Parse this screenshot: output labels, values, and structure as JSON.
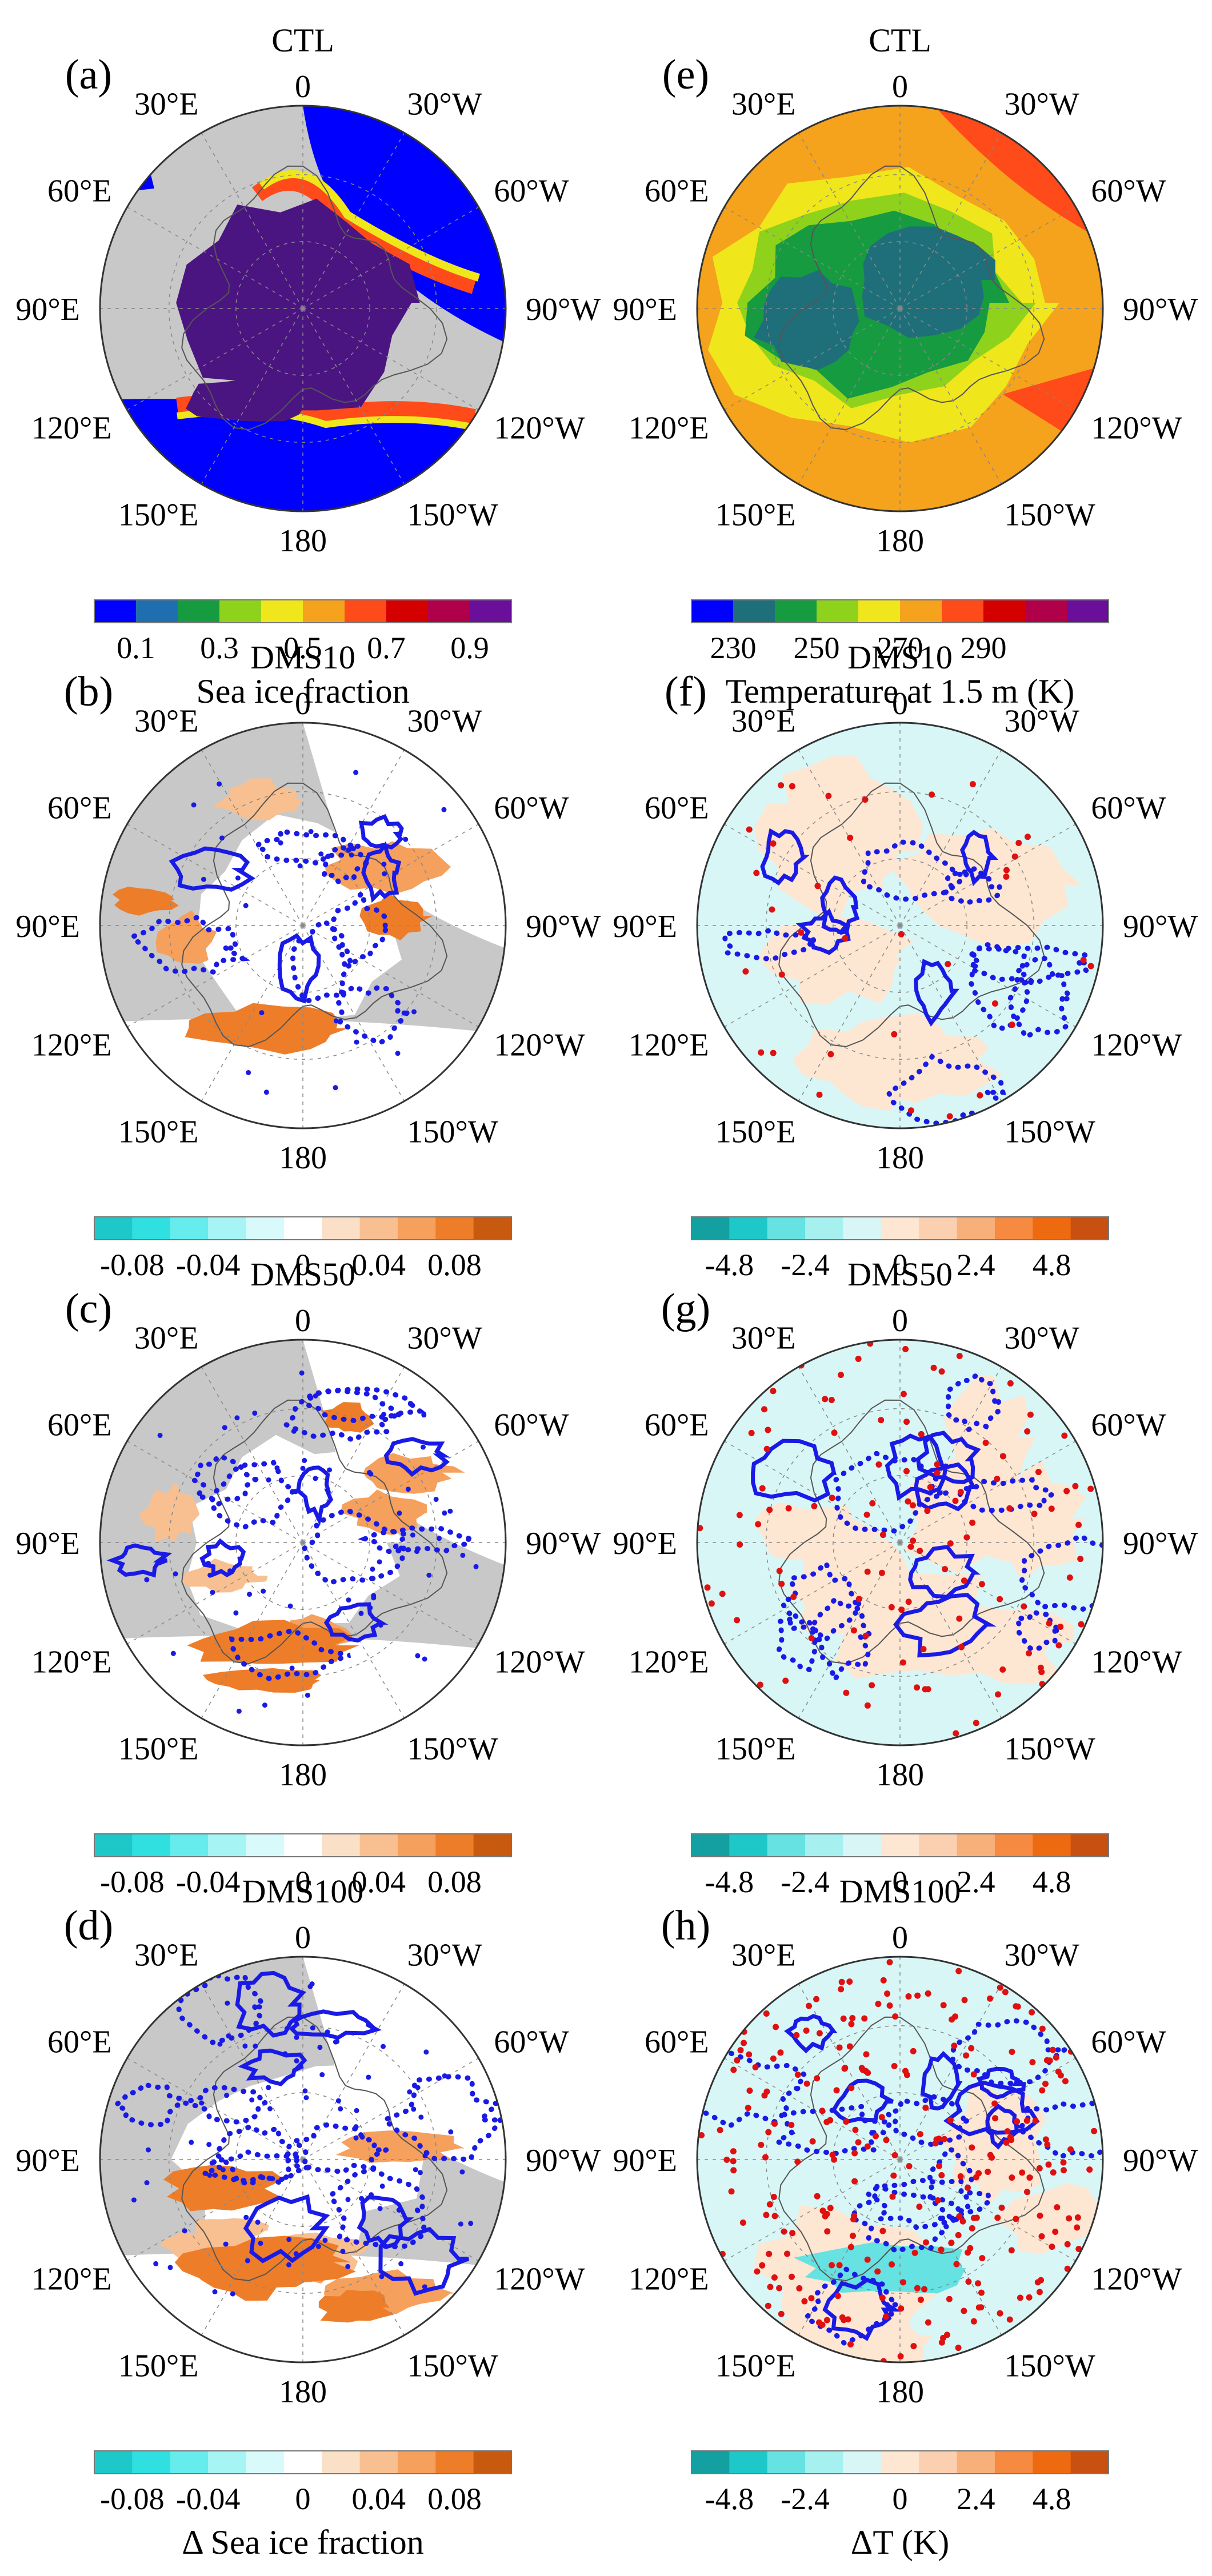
{
  "figure": {
    "colorbar_labels": {
      "sea_ice_fraction": "Sea ice fraction",
      "temperature": "Temperature at 1.5 m (K)",
      "delta_sea_ice": "Δ Sea ice fraction",
      "delta_t": "ΔT (K)"
    },
    "longitude_labels": [
      "0",
      "30°W",
      "60°W",
      "90°W",
      "120°W",
      "150°W",
      "180",
      "150°E",
      "120°E",
      "90°E",
      "60°E",
      "30°E"
    ]
  },
  "chart_data": [
    {
      "type": "heatmap",
      "panel": "(a)",
      "title": "CTL",
      "projection": "north polar stereographic",
      "variable": "Sea ice fraction",
      "colorbar": {
        "ticks": [
          "0.1",
          "0.3",
          "0.5",
          "0.7",
          "0.9"
        ],
        "colors": [
          "#0000ff",
          "#1f6fb0",
          "#169b40",
          "#8fd21c",
          "#f0e61c",
          "#f5a21c",
          "#ff4a1a",
          "#d40000",
          "#b0004a",
          "#6a0f9a"
        ]
      },
      "legend": "colorbar below panel"
    },
    {
      "type": "heatmap",
      "panel": "(e)",
      "title": "CTL",
      "projection": "north polar stereographic",
      "variable": "Temperature at 1.5 m (K)",
      "colorbar": {
        "ticks": [
          "230",
          "250",
          "270",
          "290"
        ],
        "colors": [
          "#0000ff",
          "#1f6f7a",
          "#169b40",
          "#8fd21c",
          "#f0e61c",
          "#f5a21c",
          "#ff4a1a",
          "#d40000",
          "#b0004a",
          "#6a0f9a"
        ]
      },
      "legend": "colorbar below panel"
    },
    {
      "type": "heatmap",
      "panel": "(b)",
      "title": "DMS10",
      "variable": "Δ Sea ice fraction",
      "colorbar": {
        "ticks": [
          "-0.08",
          "-0.04",
          "0",
          "0.04",
          "0.08"
        ],
        "colors": [
          "#1fc8c8",
          "#30e0e0",
          "#66ecec",
          "#a6f4f4",
          "#d8fafa",
          "#ffffff",
          "#fbe0c8",
          "#f8c090",
          "#f5a05c",
          "#ee7d2a",
          "#c85a10"
        ]
      },
      "contours": "blue solid and dotted",
      "significance": "dots"
    },
    {
      "type": "heatmap",
      "panel": "(f)",
      "title": "DMS10",
      "variable": "ΔT (K)",
      "colorbar": {
        "ticks": [
          "-4.8",
          "-2.4",
          "0",
          "2.4",
          "4.8"
        ],
        "colors": [
          "#14a0a0",
          "#1fc8c8",
          "#66e2e2",
          "#a6f0f0",
          "#d8f6f6",
          "#fde6d2",
          "#fbd0b0",
          "#f8b07a",
          "#f58a40",
          "#ee6a10",
          "#c85010"
        ]
      },
      "contours": "blue solid and dotted",
      "significance": "red dots"
    },
    {
      "type": "heatmap",
      "panel": "(c)",
      "title": "DMS50",
      "variable": "Δ Sea ice fraction",
      "colorbar": {
        "ticks": [
          "-0.08",
          "-0.04",
          "0",
          "0.04",
          "0.08"
        ],
        "colors": [
          "#1fc8c8",
          "#30e0e0",
          "#66ecec",
          "#a6f4f4",
          "#d8fafa",
          "#ffffff",
          "#fbe0c8",
          "#f8c090",
          "#f5a05c",
          "#ee7d2a",
          "#c85a10"
        ]
      },
      "contours": "blue solid and dotted",
      "significance": "dots"
    },
    {
      "type": "heatmap",
      "panel": "(g)",
      "title": "DMS50",
      "variable": "ΔT (K)",
      "colorbar": {
        "ticks": [
          "-4.8",
          "-2.4",
          "0",
          "2.4",
          "4.8"
        ],
        "colors": [
          "#14a0a0",
          "#1fc8c8",
          "#66e2e2",
          "#a6f0f0",
          "#d8f6f6",
          "#fde6d2",
          "#fbd0b0",
          "#f8b07a",
          "#f58a40",
          "#ee6a10",
          "#c85010"
        ]
      },
      "contours": "blue solid and dotted",
      "significance": "red dots"
    },
    {
      "type": "heatmap",
      "panel": "(d)",
      "title": "DMS100",
      "variable": "Δ Sea ice fraction",
      "colorbar": {
        "ticks": [
          "-0.08",
          "-0.04",
          "0",
          "0.04",
          "0.08"
        ],
        "colors": [
          "#1fc8c8",
          "#30e0e0",
          "#66ecec",
          "#a6f4f4",
          "#d8fafa",
          "#ffffff",
          "#fbe0c8",
          "#f8c090",
          "#f5a05c",
          "#ee7d2a",
          "#c85a10"
        ]
      },
      "contours": "blue solid and dotted",
      "significance": "dots"
    },
    {
      "type": "heatmap",
      "panel": "(h)",
      "title": "DMS100",
      "variable": "ΔT (K)",
      "colorbar": {
        "ticks": [
          "-4.8",
          "-2.4",
          "0",
          "2.4",
          "4.8"
        ],
        "colors": [
          "#14a0a0",
          "#1fc8c8",
          "#66e2e2",
          "#a6f0f0",
          "#d8f6f6",
          "#fde6d2",
          "#fbd0b0",
          "#f8b07a",
          "#f58a40",
          "#ee6a10",
          "#c85010"
        ]
      },
      "contours": "blue solid and dotted",
      "significance": "red dots"
    }
  ]
}
